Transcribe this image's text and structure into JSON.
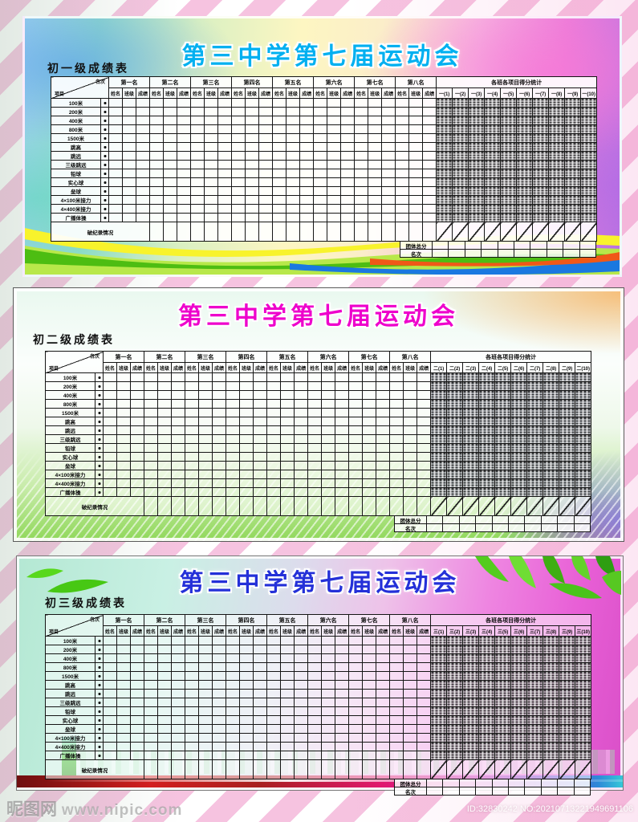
{
  "page": {
    "watermark_logo": "昵图网",
    "watermark_url": "www.nipic.com",
    "image_id_text": "ID:32830242 NO:20210713221949691106",
    "stripe_color": "#ee92c6"
  },
  "shared": {
    "corner_top": "名次",
    "corner_bottom": "项目",
    "rank_groups": [
      "第一名",
      "第二名",
      "第三名",
      "第四名",
      "第五名",
      "第六名",
      "第七名",
      "第八名"
    ],
    "rank_subcols": [
      "姓名",
      "班级",
      "成绩"
    ],
    "score_section_title": "各班各项目得分统计",
    "events": [
      "100米",
      "200米",
      "400米",
      "800米",
      "1500米",
      "跳高",
      "跳远",
      "三级跳远",
      "铅球",
      "实心球",
      "垒球",
      "4×100米接力",
      "4×400米接力",
      "广播体操"
    ],
    "remarks_label": "破纪录情况",
    "appendix_rows": [
      "团体总分",
      "名次"
    ]
  },
  "panels": [
    {
      "title": "第三中学第七届运动会",
      "title_color": "#00b0f0",
      "grade_label": "初一级成绩表",
      "classes": [
        "一(1)",
        "一(2)",
        "一(3)",
        "一(4)",
        "一(5)",
        "一(6)",
        "一(7)",
        "一(8)",
        "一(9)",
        "一(10)"
      ]
    },
    {
      "title": "第三中学第七届运动会",
      "title_color": "#ee00cc",
      "grade_label": "初二级成绩表",
      "classes": [
        "二(1)",
        "二(2)",
        "二(3)",
        "二(4)",
        "二(5)",
        "二(6)",
        "二(7)",
        "二(8)",
        "二(9)",
        "二(10)"
      ]
    },
    {
      "title": "第三中学第七届运动会",
      "title_color": "#2430d8",
      "grade_label": "初三级成绩表",
      "classes": [
        "三(1)",
        "三(2)",
        "三(3)",
        "三(4)",
        "三(5)",
        "三(6)",
        "三(7)",
        "三(8)",
        "三(9)",
        "三(10)"
      ]
    }
  ]
}
